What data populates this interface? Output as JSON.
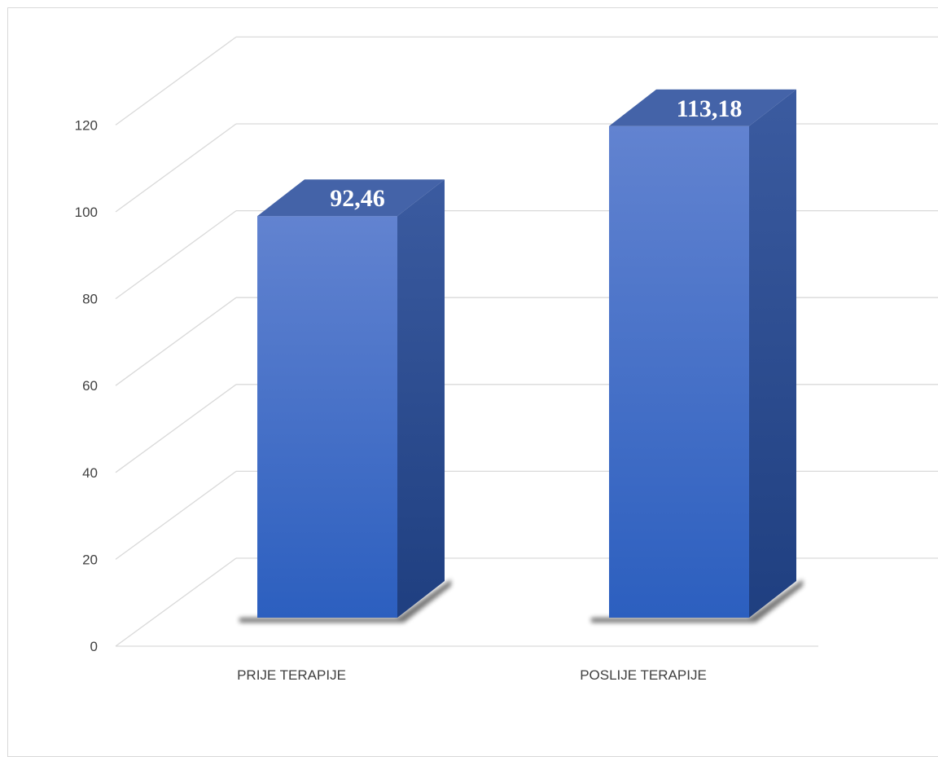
{
  "chart_data": {
    "type": "bar",
    "style": "3d-column",
    "categories": [
      "PRIJE TERAPIJE",
      "POSLIJE TERAPIJE"
    ],
    "values": [
      92.46,
      113.18
    ],
    "data_labels": [
      "92,46",
      "113,18"
    ],
    "ylim": [
      0,
      120
    ],
    "yticks": [
      0,
      20,
      40,
      60,
      80,
      100,
      120
    ],
    "ytick_labels": [
      "0",
      "20",
      "40",
      "60",
      "80",
      "100",
      "120"
    ],
    "grid": true,
    "legend": "none",
    "colors": {
      "front_top": "#6283d0",
      "front_bottom": "#2c5fbf",
      "side_top": "#3b5ba0",
      "side_bottom": "#1f3f80",
      "top_face": "#4463a8",
      "grid": "#d9d9d9"
    }
  }
}
